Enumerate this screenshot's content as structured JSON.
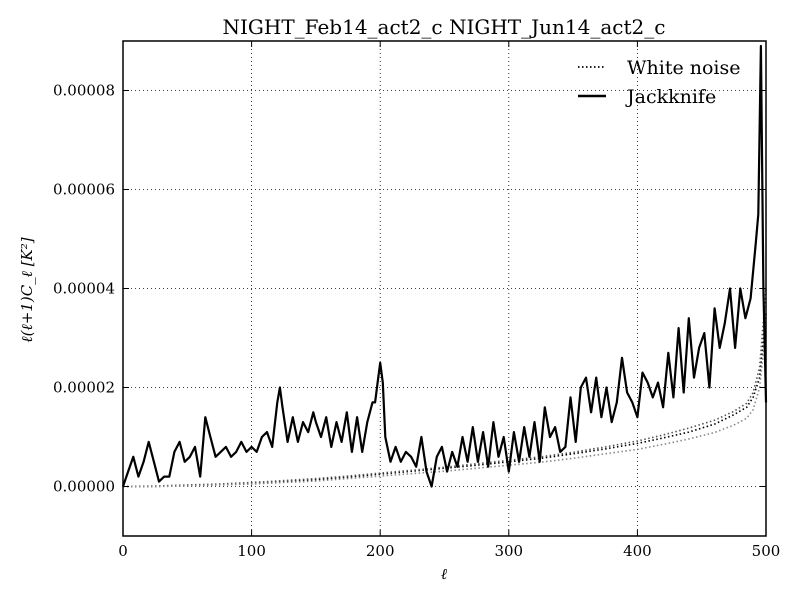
{
  "chart_data": {
    "type": "line",
    "title": "NIGHT_Feb14_act2_c NIGHT_Jun14_act2_c",
    "xlabel": "ℓ",
    "ylabel": "ℓ(ℓ+1)C_ℓ [K²]",
    "xlim": [
      0,
      500
    ],
    "ylim": [
      -1e-05,
      9e-05
    ],
    "xticks": [
      0,
      100,
      200,
      300,
      400,
      500
    ],
    "xtick_labels": [
      "0",
      "100",
      "200",
      "300",
      "400",
      "500"
    ],
    "yticks": [
      0,
      2e-05,
      4e-05,
      6e-05,
      8e-05
    ],
    "ytick_labels": [
      "0.00000",
      "0.00002",
      "0.00004",
      "0.00006",
      "0.00008"
    ],
    "grid": true,
    "legend_position": "top-right",
    "legend": [
      {
        "name": "White noise",
        "style": "dotted"
      },
      {
        "name": "Jackknife",
        "style": "solid"
      }
    ],
    "series": [
      {
        "name": "Jackknife",
        "style": "solid",
        "color": "#000000",
        "x": [
          0,
          4,
          8,
          12,
          16,
          20,
          24,
          28,
          32,
          36,
          40,
          44,
          48,
          52,
          56,
          60,
          64,
          68,
          72,
          76,
          80,
          84,
          88,
          92,
          96,
          100,
          104,
          108,
          112,
          116,
          120,
          122,
          124,
          128,
          132,
          136,
          140,
          144,
          148,
          150,
          154,
          158,
          162,
          166,
          170,
          174,
          178,
          182,
          186,
          190,
          194,
          196,
          198,
          200,
          202,
          204,
          208,
          212,
          216,
          220,
          224,
          228,
          232,
          236,
          240,
          244,
          248,
          252,
          256,
          260,
          264,
          268,
          272,
          276,
          280,
          284,
          288,
          292,
          296,
          300,
          304,
          308,
          312,
          316,
          320,
          324,
          328,
          332,
          336,
          340,
          344,
          348,
          352,
          356,
          360,
          364,
          368,
          372,
          376,
          380,
          384,
          388,
          392,
          396,
          400,
          404,
          408,
          412,
          416,
          420,
          424,
          428,
          432,
          436,
          440,
          444,
          448,
          452,
          456,
          460,
          464,
          468,
          472,
          476,
          480,
          484,
          488,
          492,
          494,
          496,
          498,
          500
        ],
        "y": [
          0.0,
          3e-06,
          6e-06,
          2e-06,
          5e-06,
          9e-06,
          5e-06,
          1e-06,
          2e-06,
          2e-06,
          7e-06,
          9e-06,
          5e-06,
          6e-06,
          8e-06,
          2e-06,
          1.4e-05,
          1e-05,
          6e-06,
          7e-06,
          8e-06,
          6e-06,
          7e-06,
          9e-06,
          7e-06,
          8e-06,
          7e-06,
          1e-05,
          1.1e-05,
          8e-06,
          1.7e-05,
          2e-05,
          1.6e-05,
          9e-06,
          1.4e-05,
          9e-06,
          1.3e-05,
          1.1e-05,
          1.5e-05,
          1.3e-05,
          1e-05,
          1.4e-05,
          8e-06,
          1.3e-05,
          9e-06,
          1.5e-05,
          7e-06,
          1.4e-05,
          7e-06,
          1.3e-05,
          1.7e-05,
          1.7e-05,
          2.1e-05,
          2.5e-05,
          2.1e-05,
          1e-05,
          5e-06,
          8e-06,
          5e-06,
          7e-06,
          6e-06,
          4e-06,
          1e-05,
          3e-06,
          0.0,
          6e-06,
          8e-06,
          3e-06,
          7e-06,
          4e-06,
          1e-05,
          5e-06,
          1.2e-05,
          5e-06,
          1.1e-05,
          4e-06,
          1.3e-05,
          6e-06,
          1e-05,
          3e-06,
          1.1e-05,
          5e-06,
          1.2e-05,
          6e-06,
          1.3e-05,
          5e-06,
          1.6e-05,
          1e-05,
          1.2e-05,
          7e-06,
          8e-06,
          1.8e-05,
          9e-06,
          2e-05,
          2.2e-05,
          1.5e-05,
          2.2e-05,
          1.4e-05,
          2e-05,
          1.3e-05,
          1.7e-05,
          2.6e-05,
          1.9e-05,
          1.7e-05,
          1.4e-05,
          2.3e-05,
          2.1e-05,
          1.8e-05,
          2.1e-05,
          1.6e-05,
          2.7e-05,
          1.8e-05,
          3.2e-05,
          1.9e-05,
          3.4e-05,
          2.2e-05,
          2.8e-05,
          3.1e-05,
          2e-05,
          3.6e-05,
          2.8e-05,
          3.3e-05,
          4e-05,
          2.8e-05,
          4e-05,
          3.4e-05,
          3.8e-05,
          4.9e-05,
          5.5e-05,
          8.9e-05,
          4e-05,
          1.7e-05
        ]
      },
      {
        "name": "White noise",
        "style": "dotted",
        "color": "#000000",
        "x": [
          0,
          25,
          50,
          75,
          100,
          125,
          150,
          175,
          200,
          225,
          250,
          275,
          300,
          325,
          350,
          375,
          400,
          420,
          440,
          460,
          475,
          485,
          490,
          495,
          500
        ],
        "y": [
          0.0,
          0.0,
          2e-07,
          4e-07,
          6e-07,
          1e-06,
          1.4e-06,
          1.9e-06,
          2.5e-06,
          3.1e-06,
          3.7e-06,
          4.3e-06,
          5e-06,
          5.7e-06,
          6.6e-06,
          7.6e-06,
          8.7e-06,
          9.8e-06,
          1.1e-05,
          1.26e-05,
          1.45e-05,
          1.6e-05,
          1.8e-05,
          2.2e-05,
          3.5e-05
        ]
      },
      {
        "name": "",
        "style": "dotted",
        "color": "#555555",
        "x": [
          0,
          25,
          50,
          75,
          100,
          125,
          150,
          175,
          200,
          225,
          250,
          275,
          300,
          325,
          350,
          375,
          400,
          420,
          440,
          460,
          475,
          485,
          490,
          495,
          500
        ],
        "y": [
          0.0,
          1e-07,
          3e-07,
          5e-07,
          8e-07,
          1.2e-06,
          1.6e-06,
          2.1e-06,
          2.7e-06,
          3.3e-06,
          3.9e-06,
          4.6e-06,
          5.3e-06,
          6e-06,
          6.9e-06,
          8e-06,
          9.2e-06,
          1.04e-05,
          1.18e-05,
          1.34e-05,
          1.52e-05,
          1.68e-05,
          1.9e-05,
          2.4e-05,
          4e-05
        ]
      },
      {
        "name": "",
        "style": "dotted",
        "color": "#888888",
        "x": [
          0,
          25,
          50,
          75,
          100,
          125,
          150,
          175,
          200,
          225,
          250,
          275,
          300,
          325,
          350,
          375,
          400,
          420,
          440,
          460,
          475,
          485,
          490,
          495,
          500
        ],
        "y": [
          0.0,
          0.0,
          1e-07,
          3e-07,
          5e-07,
          8e-07,
          1.1e-06,
          1.6e-06,
          2.1e-06,
          2.6e-06,
          3.1e-06,
          3.7e-06,
          4.3e-06,
          4.9e-06,
          5.7e-06,
          6.6e-06,
          7.5e-06,
          8.5e-06,
          9.6e-06,
          1.09e-05,
          1.24e-05,
          1.38e-05,
          1.55e-05,
          2e-05,
          3.2e-05
        ]
      }
    ]
  }
}
